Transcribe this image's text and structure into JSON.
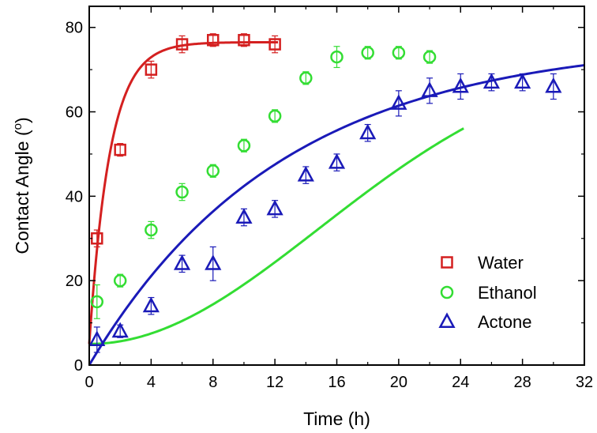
{
  "chart_data": {
    "type": "scatter",
    "xlabel": "Time (h)",
    "ylabel_main": "Contact Angle (",
    "ylabel_sup": "o",
    "ylabel_end": ")",
    "xlim": [
      0,
      32
    ],
    "ylim": [
      0,
      85
    ],
    "xticks": [
      0,
      4,
      8,
      12,
      16,
      20,
      24,
      28,
      32
    ],
    "yticks": [
      0,
      20,
      40,
      60,
      80
    ],
    "grid": false,
    "legend_position": "bottom-right",
    "series": [
      {
        "name": "Water",
        "marker": "square",
        "color": "#d42020",
        "points": [
          {
            "x": 0.5,
            "y": 30,
            "err": 2
          },
          {
            "x": 2,
            "y": 51,
            "err": 1.5
          },
          {
            "x": 4,
            "y": 70,
            "err": 2
          },
          {
            "x": 6,
            "y": 76,
            "err": 2
          },
          {
            "x": 8,
            "y": 77,
            "err": 1.5
          },
          {
            "x": 10,
            "y": 77,
            "err": 1.5
          },
          {
            "x": 12,
            "y": 76,
            "err": 2
          }
        ],
        "fit": {
          "a": 76.5,
          "b": 71.5,
          "k": 0.75,
          "xmin": 0,
          "xmax": 12.2
        }
      },
      {
        "name": "Ethanol",
        "marker": "circle",
        "color": "#33dd33",
        "points": [
          {
            "x": 0.5,
            "y": 15,
            "err": 4
          },
          {
            "x": 2,
            "y": 20,
            "err": 1.5
          },
          {
            "x": 4,
            "y": 32,
            "err": 2
          },
          {
            "x": 6,
            "y": 41,
            "err": 2
          },
          {
            "x": 8,
            "y": 46,
            "err": 1.5
          },
          {
            "x": 10,
            "y": 52,
            "err": 1.5
          },
          {
            "x": 12,
            "y": 59,
            "err": 1.5
          },
          {
            "x": 14,
            "y": 68,
            "err": 1.5
          },
          {
            "x": 16,
            "y": 73,
            "err": 2.5
          },
          {
            "x": 18,
            "y": 74,
            "err": 1.5
          },
          {
            "x": 20,
            "y": 74,
            "err": 1.5
          },
          {
            "x": 22,
            "y": 73,
            "err": 1.5
          }
        ],
        "fit": {
          "a": 74.5,
          "b": 69.5,
          "c": 21,
          "xmin": 0,
          "xmax": 24.2
        }
      },
      {
        "name": "Actone",
        "marker": "triangle",
        "color": "#1a1ab8",
        "points": [
          {
            "x": 0.5,
            "y": 6,
            "err": 3
          },
          {
            "x": 2,
            "y": 8,
            "err": 1.5
          },
          {
            "x": 4,
            "y": 14,
            "err": 2
          },
          {
            "x": 6,
            "y": 24,
            "err": 2
          },
          {
            "x": 8,
            "y": 24,
            "err": 4
          },
          {
            "x": 10,
            "y": 35,
            "err": 2
          },
          {
            "x": 12,
            "y": 37,
            "err": 2
          },
          {
            "x": 14,
            "y": 45,
            "err": 2
          },
          {
            "x": 16,
            "y": 48,
            "err": 2
          },
          {
            "x": 18,
            "y": 55,
            "err": 2
          },
          {
            "x": 20,
            "y": 62,
            "err": 3
          },
          {
            "x": 22,
            "y": 65,
            "err": 3
          },
          {
            "x": 24,
            "y": 66,
            "err": 3
          },
          {
            "x": 26,
            "y": 67,
            "err": 2
          },
          {
            "x": 28,
            "y": 67,
            "err": 2
          },
          {
            "x": 30,
            "y": 66,
            "err": 3
          }
        ],
        "fit": {
          "a": 77,
          "b": 77,
          "k": 0.08,
          "xmin": 0,
          "xmax": 32
        }
      }
    ]
  }
}
